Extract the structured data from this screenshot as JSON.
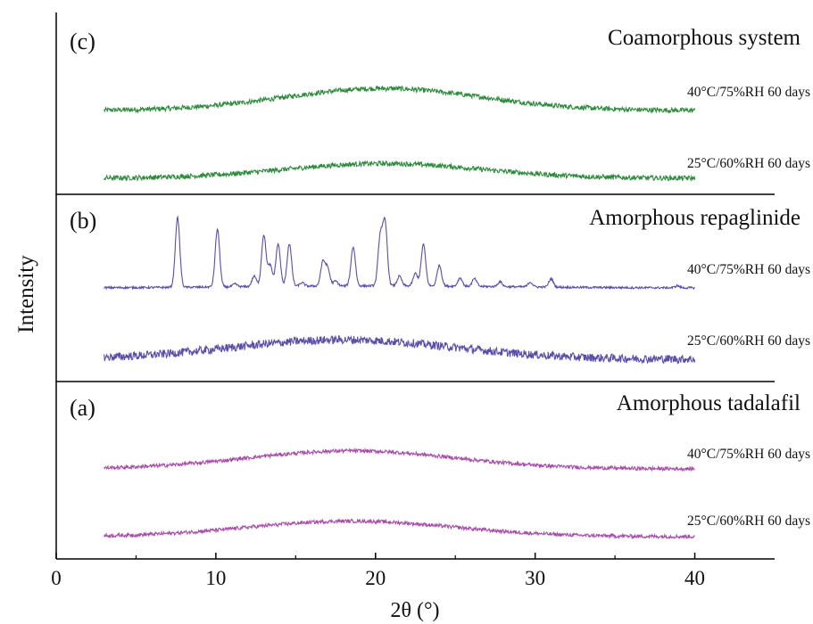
{
  "chart_data": {
    "type": "line",
    "xlabel": "2θ (°)",
    "ylabel": "Intensity",
    "xlim": [
      0,
      45
    ],
    "xticks": [
      0,
      10,
      20,
      30,
      40
    ],
    "x_range_measured": [
      3,
      40
    ],
    "panels": [
      {
        "label": "(c)",
        "title": "Coamorphous system",
        "color": "#2e8b3e",
        "series": [
          {
            "name": "40°C/75%RH 60 days",
            "pattern": "amorphous halo",
            "halo_center": 20.5,
            "halo_width": 6.2,
            "baseline": 0.0,
            "halo_height": 0.45,
            "noise": 0.05
          },
          {
            "name": "25°C/60%RH 60 days",
            "pattern": "amorphous halo",
            "halo_center": 20.5,
            "halo_width": 6.2,
            "baseline": 0.0,
            "halo_height": 0.3,
            "noise": 0.05
          }
        ]
      },
      {
        "label": "(b)",
        "title": "Amorphous repaglinide",
        "color": "#5a4ea8",
        "series": [
          {
            "name": "40°C/75%RH 60 days",
            "pattern": "crystalline peaks",
            "peaks": [
              {
                "x": 7.6,
                "height": 1.0
              },
              {
                "x": 10.1,
                "height": 0.83
              },
              {
                "x": 11.2,
                "height": 0.04
              },
              {
                "x": 12.4,
                "height": 0.15
              },
              {
                "x": 13.0,
                "height": 0.74
              },
              {
                "x": 13.4,
                "height": 0.3
              },
              {
                "x": 13.9,
                "height": 0.61
              },
              {
                "x": 14.6,
                "height": 0.61
              },
              {
                "x": 15.4,
                "height": 0.05
              },
              {
                "x": 16.7,
                "height": 0.34
              },
              {
                "x": 17.0,
                "height": 0.25
              },
              {
                "x": 17.5,
                "height": 0.07
              },
              {
                "x": 18.6,
                "height": 0.56
              },
              {
                "x": 20.3,
                "height": 0.7
              },
              {
                "x": 20.6,
                "height": 0.88
              },
              {
                "x": 21.5,
                "height": 0.14
              },
              {
                "x": 22.5,
                "height": 0.18
              },
              {
                "x": 23.0,
                "height": 0.6
              },
              {
                "x": 24.0,
                "height": 0.3
              },
              {
                "x": 25.3,
                "height": 0.12
              },
              {
                "x": 26.2,
                "height": 0.11
              },
              {
                "x": 27.8,
                "height": 0.07
              },
              {
                "x": 29.7,
                "height": 0.07
              },
              {
                "x": 31.0,
                "height": 0.12
              },
              {
                "x": 38.9,
                "height": 0.03
              }
            ],
            "noise": 0.015
          },
          {
            "name": "25°C/60%RH 60 days",
            "pattern": "amorphous halo",
            "halo_center": 18.0,
            "halo_width": 7.0,
            "baseline": 0.0,
            "halo_height": 0.28,
            "noise": 0.06
          }
        ]
      },
      {
        "label": "(a)",
        "title": "Amorphous tadalafil",
        "color": "#a64ea8",
        "series": [
          {
            "name": "40°C/75%RH 60 days",
            "pattern": "amorphous halo",
            "halo_center": 18.5,
            "halo_width": 6.5,
            "baseline": 0.0,
            "halo_height": 0.35,
            "noise": 0.035
          },
          {
            "name": "25°C/60%RH 60 days",
            "pattern": "amorphous halo",
            "halo_center": 18.5,
            "halo_width": 6.5,
            "baseline": 0.0,
            "halo_height": 0.3,
            "noise": 0.035
          }
        ]
      }
    ]
  }
}
